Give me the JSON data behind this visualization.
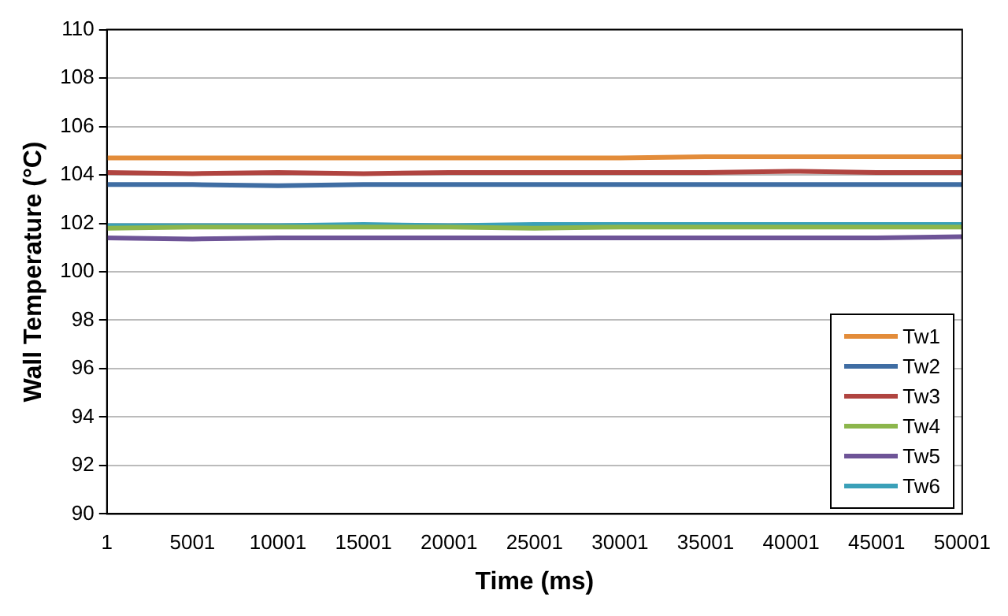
{
  "chart_data": {
    "type": "line",
    "xlabel": "Time (ms)",
    "ylabel": "Wall Temperature (°C)",
    "x": [
      1,
      5001,
      10001,
      15001,
      20001,
      25001,
      30001,
      35001,
      40001,
      45001,
      50001
    ],
    "series": [
      {
        "name": "Tw1",
        "color": "#e38c3a",
        "values": [
          104.7,
          104.7,
          104.7,
          104.7,
          104.7,
          104.7,
          104.7,
          104.75,
          104.75,
          104.75,
          104.75
        ]
      },
      {
        "name": "Tw2",
        "color": "#3f6da3",
        "values": [
          103.6,
          103.6,
          103.55,
          103.6,
          103.6,
          103.6,
          103.6,
          103.6,
          103.6,
          103.6,
          103.6
        ]
      },
      {
        "name": "Tw3",
        "color": "#b04440",
        "values": [
          104.1,
          104.05,
          104.1,
          104.05,
          104.1,
          104.1,
          104.1,
          104.1,
          104.15,
          104.1,
          104.1
        ]
      },
      {
        "name": "Tw4",
        "color": "#8cb64c",
        "values": [
          101.8,
          101.85,
          101.85,
          101.85,
          101.85,
          101.8,
          101.85,
          101.85,
          101.85,
          101.85,
          101.85
        ]
      },
      {
        "name": "Tw5",
        "color": "#6e5497",
        "values": [
          101.4,
          101.35,
          101.4,
          101.4,
          101.4,
          101.4,
          101.4,
          101.4,
          101.4,
          101.4,
          101.45
        ]
      },
      {
        "name": "Tw6",
        "color": "#3aa0b8",
        "values": [
          101.9,
          101.9,
          101.9,
          101.95,
          101.9,
          101.95,
          101.95,
          101.95,
          101.95,
          101.95,
          101.95
        ]
      }
    ],
    "xlim": [
      1,
      50001
    ],
    "xticks": [
      1,
      5001,
      10001,
      15001,
      20001,
      25001,
      30001,
      35001,
      40001,
      45001,
      50001
    ],
    "ylim": [
      90,
      110
    ],
    "yticks": [
      90,
      92,
      94,
      96,
      98,
      100,
      102,
      104,
      106,
      108,
      110
    ],
    "grid": "y",
    "legend": "bottom right",
    "marker": "none",
    "line_style": "solid"
  }
}
